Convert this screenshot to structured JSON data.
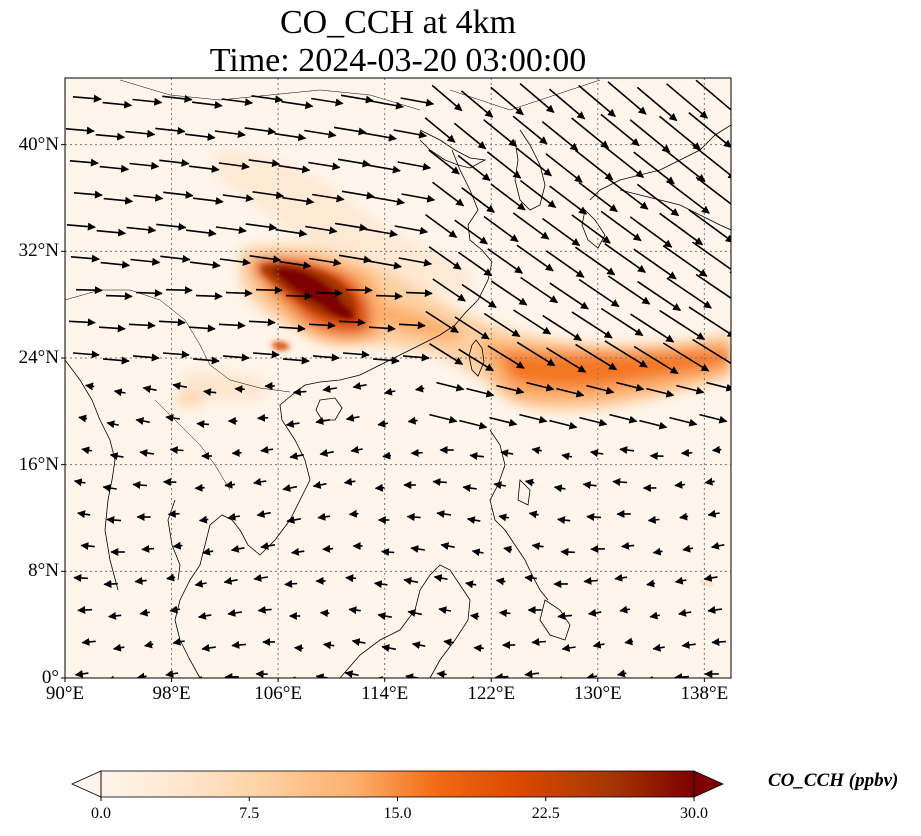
{
  "title": {
    "line1": "CO_CCH at 4km",
    "line2": "Time: 2024-03-20 03:00:00"
  },
  "map": {
    "lon_range": [
      90,
      140
    ],
    "lat_range": [
      0,
      45
    ],
    "lon_ticks": [
      {
        "value": 90,
        "label": "90°E"
      },
      {
        "value": 98,
        "label": "98°E"
      },
      {
        "value": 106,
        "label": "106°E"
      },
      {
        "value": 114,
        "label": "114°E"
      },
      {
        "value": 122,
        "label": "122°E"
      },
      {
        "value": 130,
        "label": "130°E"
      },
      {
        "value": 138,
        "label": "138°E"
      }
    ],
    "lat_ticks": [
      {
        "value": 0,
        "label": "0°"
      },
      {
        "value": 8,
        "label": "8°N"
      },
      {
        "value": 16,
        "label": "16°N"
      },
      {
        "value": 24,
        "label": "24°N"
      },
      {
        "value": 32,
        "label": "32°N"
      },
      {
        "value": 40,
        "label": "40°N"
      }
    ],
    "gridlines": true,
    "background_color": "#fff5eb"
  },
  "colorbar": {
    "label": "CO_CCH (ppbv)",
    "min": 0,
    "max": 30,
    "ticks": [
      "0.0",
      "7.5",
      "15.0",
      "22.5",
      "30.0"
    ],
    "colormap": "OrRd",
    "colors": [
      "#fff5eb",
      "#fee6ce",
      "#fdd0a2",
      "#fdae6b",
      "#f16913",
      "#d94801",
      "#a63603",
      "#7f0000"
    ],
    "extend": "both"
  }
}
